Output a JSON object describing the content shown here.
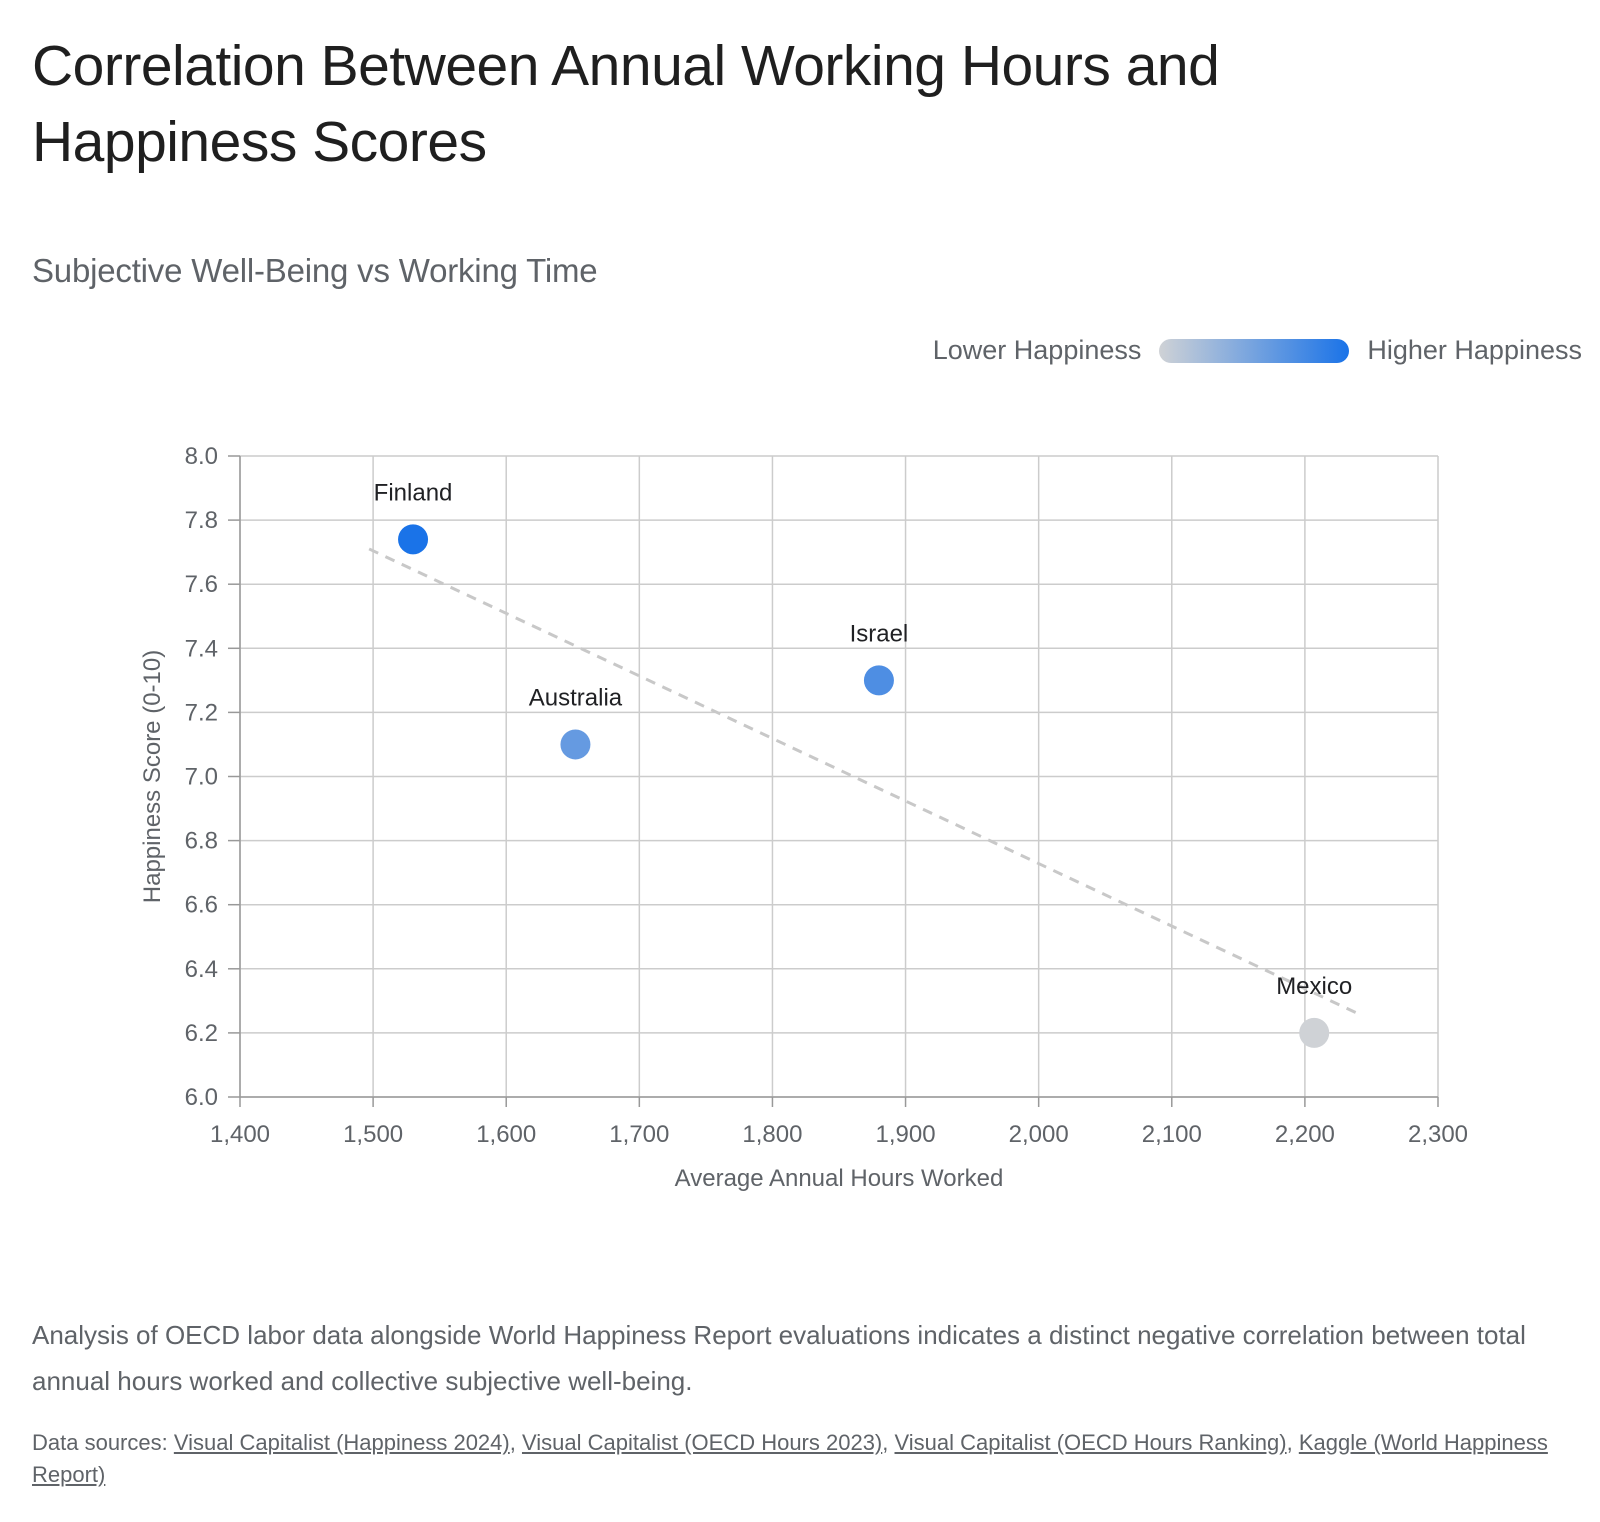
{
  "title": "Correlation Between Annual Working Hours and Happiness Scores",
  "subtitle": "Subjective Well-Being vs Working Time",
  "legend": {
    "low_label": "Lower Happiness",
    "high_label": "Higher Happiness",
    "low_color": "#cfd2d6",
    "high_color": "#1a73e8"
  },
  "chart_data": {
    "type": "scatter",
    "xlabel": "Average Annual Hours Worked",
    "ylabel": "Happiness Score (0-10)",
    "xlim": [
      1400,
      2300
    ],
    "ylim": [
      6.0,
      8.0
    ],
    "xticks": [
      1400,
      1500,
      1600,
      1700,
      1800,
      1900,
      2000,
      2100,
      2200,
      2300
    ],
    "xtick_labels": [
      "1,400",
      "1,500",
      "1,600",
      "1,700",
      "1,800",
      "1,900",
      "2,000",
      "2,100",
      "2,200",
      "2,300"
    ],
    "yticks": [
      6.0,
      6.2,
      6.4,
      6.6,
      6.8,
      7.0,
      7.2,
      7.4,
      7.6,
      7.8,
      8.0
    ],
    "ytick_labels": [
      "6.0",
      "6.2",
      "6.4",
      "6.6",
      "6.8",
      "7.0",
      "7.2",
      "7.4",
      "7.6",
      "7.8",
      "8.0"
    ],
    "grid": true,
    "legend_position": "top-right",
    "points": [
      {
        "label": "Finland",
        "x": 1530,
        "y": 7.74
      },
      {
        "label": "Australia",
        "x": 1652,
        "y": 7.1
      },
      {
        "label": "Israel",
        "x": 1880,
        "y": 7.3
      },
      {
        "label": "Mexico",
        "x": 2207,
        "y": 6.2
      }
    ],
    "trendline": {
      "x": [
        1497,
        2240
      ],
      "y": [
        7.71,
        6.26
      ],
      "style": "dashed",
      "color": "#c8c8c8"
    }
  },
  "description": "Analysis of OECD labor data alongside World Happiness Report evaluations indicates a distinct negative correlation between total annual hours worked and collective subjective well-being.",
  "sources": {
    "prefix": "Data sources: ",
    "links": [
      "Visual Capitalist (Happiness 2024)",
      "Visual Capitalist (OECD Hours 2023)",
      "Visual Capitalist (OECD Hours Ranking)",
      "Kaggle (World Happiness Report)"
    ],
    "separator": ", "
  }
}
